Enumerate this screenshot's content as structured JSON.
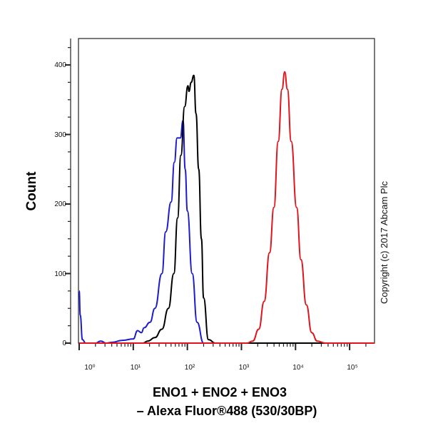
{
  "chart_data": {
    "type": "line",
    "title": "",
    "xlabel_line1": "ENO1 + ENO2 + ENO3",
    "xlabel_line2": "– Alexa Fluor®488 (530/30BP)",
    "ylabel": "Count",
    "x_scale": "log",
    "xlim_log10": [
      0,
      5.46
    ],
    "ylim": [
      0,
      438
    ],
    "x_tick_labels": [
      "10⁰",
      "10¹",
      "10²",
      "10³",
      "10⁴",
      "10⁵"
    ],
    "y_ticks": [
      0,
      100,
      200,
      300,
      400
    ],
    "y_tick_labels": [
      "0",
      "100",
      "200",
      "300",
      "400"
    ],
    "grid": false,
    "legend": "none",
    "copyright": "Copyright (c) 2017 Abcam Plc",
    "series": [
      {
        "color": "#1c1ccc",
        "x_log10": [
          0,
          0.02,
          0.06,
          0.12,
          0.3,
          0.4,
          0.5,
          0.6,
          0.8,
          1.0,
          1.08,
          1.15,
          1.2,
          1.31,
          1.4,
          1.53,
          1.6,
          1.7,
          1.76,
          1.81,
          1.87,
          1.92,
          1.96,
          2.0,
          2.09,
          2.18,
          2.3,
          2.5,
          5.46
        ],
        "counts": [
          75,
          40,
          5,
          0,
          0,
          3,
          0,
          1,
          4,
          6,
          18,
          15,
          22,
          30,
          50,
          100,
          160,
          203,
          260,
          295,
          295,
          320,
          250,
          190,
          100,
          30,
          0,
          0,
          0
        ]
      },
      {
        "color": "#000000",
        "x_log10": [
          0,
          1.0,
          1.18,
          1.27,
          1.4,
          1.53,
          1.65,
          1.75,
          1.82,
          1.88,
          1.95,
          2.01,
          2.03,
          2.07,
          2.12,
          2.16,
          2.21,
          2.26,
          2.3,
          2.39,
          2.52,
          5.46
        ],
        "counts": [
          0,
          0,
          0,
          3,
          8,
          20,
          50,
          100,
          180,
          270,
          340,
          370,
          362,
          375,
          385,
          330,
          250,
          150,
          65,
          5,
          0,
          0
        ]
      },
      {
        "color": "#e0141c",
        "x_log10": [
          0,
          3.1,
          3.21,
          3.32,
          3.42,
          3.52,
          3.6,
          3.68,
          3.75,
          3.8,
          3.85,
          3.92,
          4.02,
          4.1,
          4.2,
          4.3,
          4.4,
          4.55,
          5.46
        ],
        "counts": [
          0,
          0,
          3,
          20,
          60,
          130,
          195,
          290,
          365,
          390,
          365,
          290,
          195,
          120,
          55,
          15,
          3,
          0,
          0
        ]
      }
    ]
  }
}
